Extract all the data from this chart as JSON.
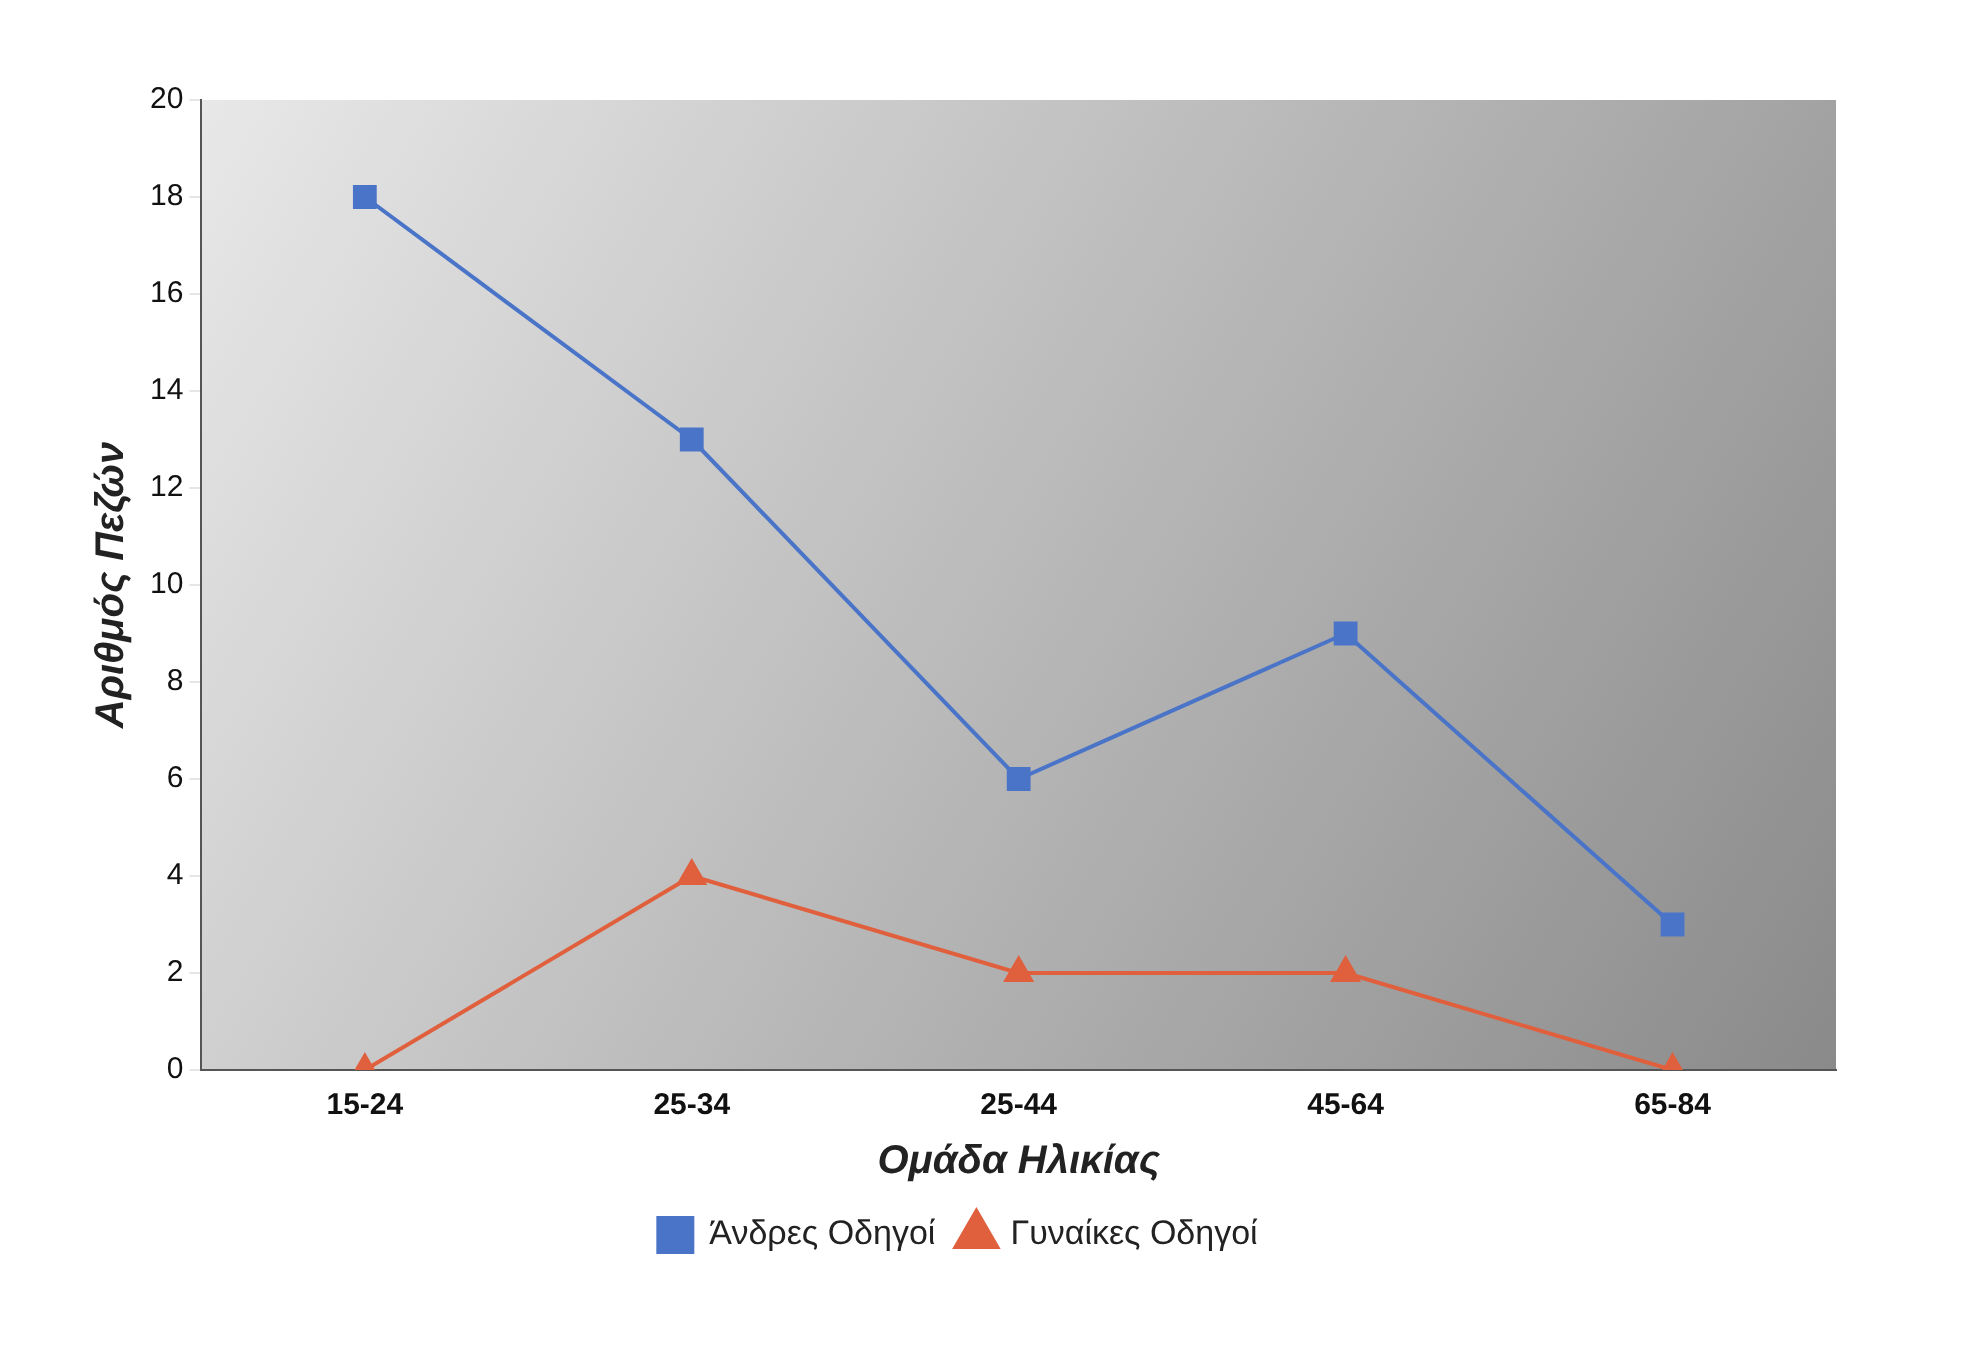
{
  "chart_data": {
    "type": "line",
    "xlabel": "Ομάδα Ηλικίας",
    "ylabel": "Αριθμός Πεζών",
    "categories": [
      "15-24",
      "25-34",
      "25-44",
      "45-64",
      "65-84"
    ],
    "series": [
      {
        "name": "Άνδρες Οδηγοί",
        "color": "#4a74c8",
        "values": [
          18,
          13,
          6,
          9,
          3
        ],
        "marker": "square"
      },
      {
        "name": "Γυναίκες Οδηγοί",
        "color": "#e0603e",
        "values": [
          0,
          4,
          2,
          2,
          0
        ],
        "marker": "triangle"
      }
    ],
    "ylim": [
      0,
      20
    ],
    "yticks": [
      0,
      2,
      4,
      6,
      8,
      10,
      12,
      14,
      16,
      18,
      20
    ],
    "grid": false,
    "legend": "bottom",
    "line_style": "solid"
  }
}
